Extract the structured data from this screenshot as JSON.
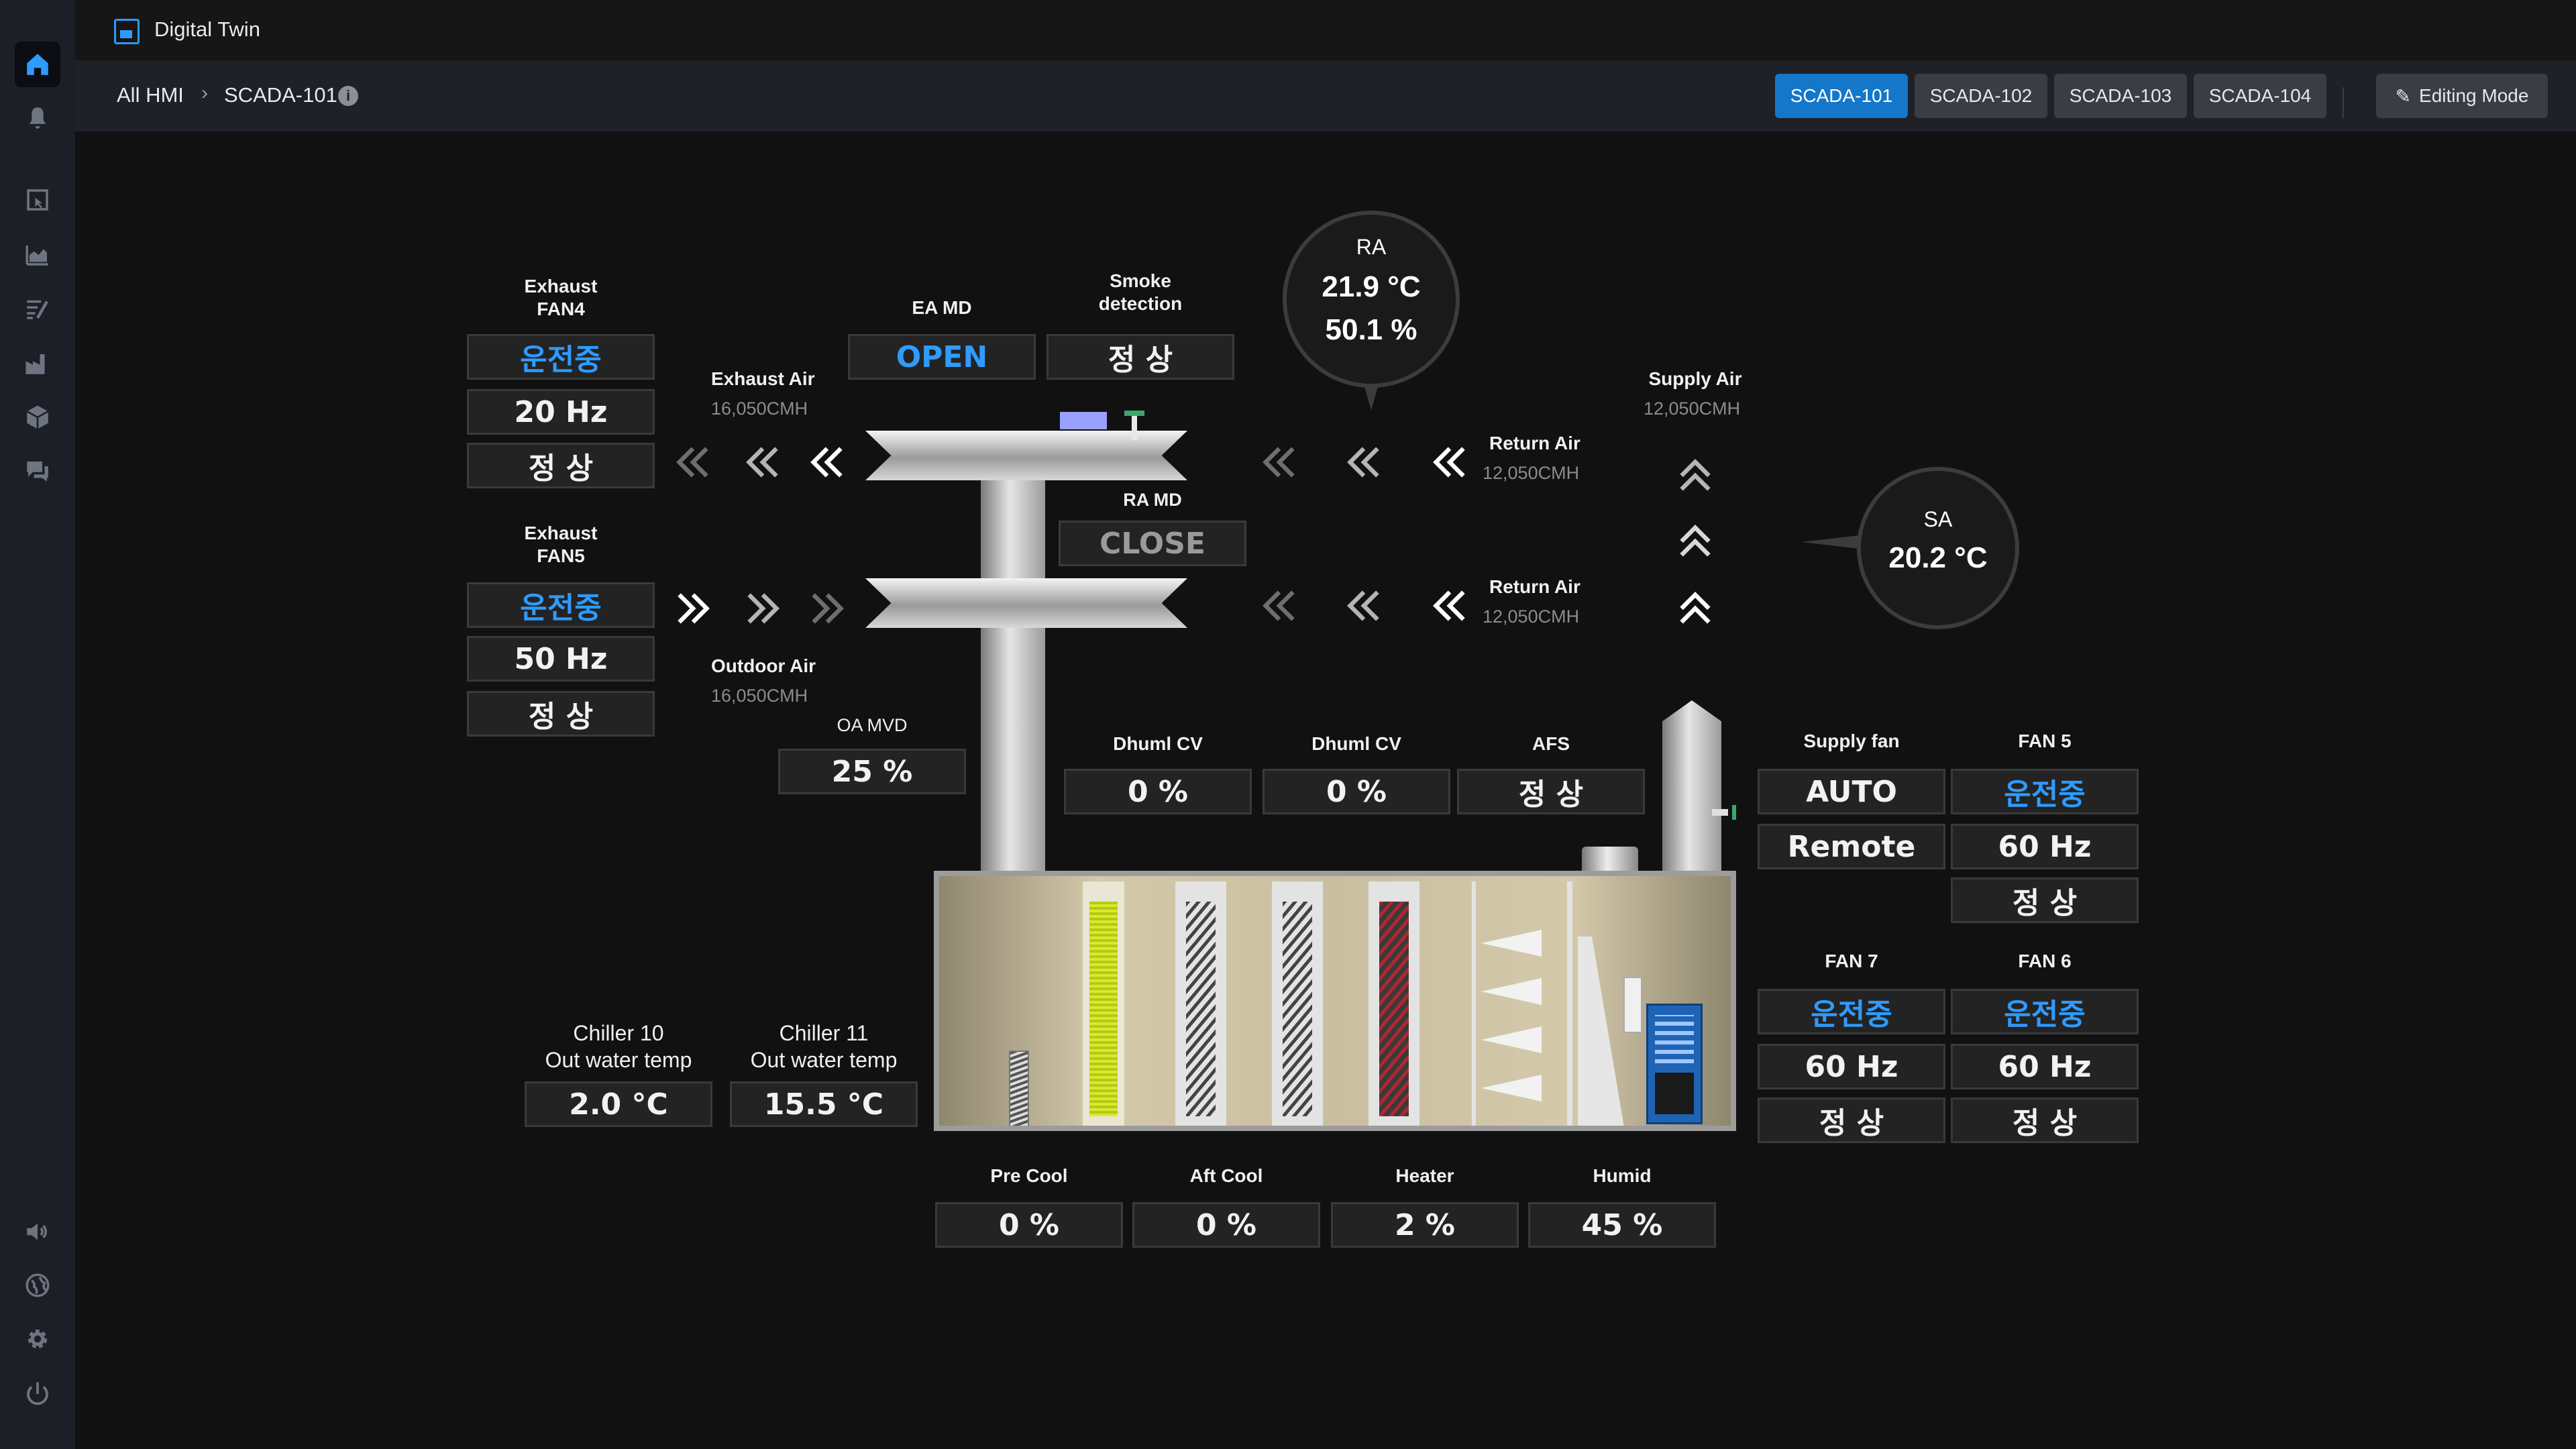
{
  "app": {
    "title": "Digital Twin"
  },
  "breadcrumb": {
    "root": "All HMI",
    "current": "SCADA-101"
  },
  "tabs": [
    {
      "label": "SCADA-101",
      "active": true
    },
    {
      "label": "SCADA-102",
      "active": false
    },
    {
      "label": "SCADA-103",
      "active": false
    },
    {
      "label": "SCADA-104",
      "active": false
    }
  ],
  "editing_mode": {
    "label": "Editing Mode"
  },
  "sidebar": {
    "top_items": [
      "home-icon",
      "bell-icon",
      "touch-panel-icon",
      "area-chart-icon",
      "report-icon",
      "factory-icon",
      "cube-icon",
      "chat-icon"
    ],
    "bottom_items": [
      "speaker-icon",
      "globe-icon",
      "gear-icon",
      "power-icon"
    ]
  },
  "colors": {
    "accent": "#1477c9",
    "running": "#2f9bff",
    "panel": "#232323"
  },
  "exhaust_fan4": {
    "title_1": "Exhaust",
    "title_2": "FAN4",
    "status": "운전중",
    "freq": "20 Hz",
    "state": "정 상"
  },
  "exhaust_fan5": {
    "title_1": "Exhaust",
    "title_2": "FAN5",
    "status": "운전중",
    "freq": "50 Hz",
    "state": "정 상"
  },
  "exhaust_air": {
    "label": "Exhaust Air",
    "flow": "16,050CMH"
  },
  "outdoor_air": {
    "label": "Outdoor Air",
    "flow": "16,050CMH"
  },
  "oa_mvd": {
    "label": "OA MVD",
    "value": "25 %"
  },
  "ea_md": {
    "label": "EA MD",
    "value": "OPEN"
  },
  "smoke": {
    "label_1": "Smoke",
    "label_2": "detection",
    "value": "정 상"
  },
  "ra_md": {
    "label": "RA MD",
    "value": "CLOSE"
  },
  "ra": {
    "label": "RA",
    "temp": "21.9 °C",
    "humidity": "50.1 %"
  },
  "sa": {
    "label": "SA",
    "temp": "20.2 °C"
  },
  "supply_air": {
    "label": "Supply Air",
    "flow": "12,050CMH"
  },
  "return_air_1": {
    "label": "Return Air",
    "flow": "12,050CMH"
  },
  "return_air_2": {
    "label": "Return Air",
    "flow": "12,050CMH"
  },
  "dhuml_cv_1": {
    "label": "Dhuml CV",
    "value": "0 %"
  },
  "dhuml_cv_2": {
    "label": "Dhuml CV",
    "value": "0 %"
  },
  "afs": {
    "label": "AFS",
    "value": "정 상"
  },
  "supply_fan": {
    "label": "Supply fan",
    "mode": "AUTO",
    "control": "Remote"
  },
  "fan5": {
    "label": "FAN 5",
    "status": "운전중",
    "freq": "60 Hz",
    "state": "정 상"
  },
  "fan7": {
    "label": "FAN 7",
    "status": "운전중",
    "freq": "60 Hz",
    "state": "정 상"
  },
  "fan6": {
    "label": "FAN 6",
    "status": "운전중",
    "freq": "60 Hz",
    "state": "정 상"
  },
  "chiller10": {
    "label_1": "Chiller 10",
    "label_2": "Out water temp",
    "value": "2.0 °C"
  },
  "chiller11": {
    "label_1": "Chiller 11",
    "label_2": "Out water temp",
    "value": "15.5 °C"
  },
  "pre_cool": {
    "label": "Pre Cool",
    "value": "0 %"
  },
  "aft_cool": {
    "label": "Aft Cool",
    "value": "0 %"
  },
  "heater": {
    "label": "Heater",
    "value": "2 %"
  },
  "humid": {
    "label": "Humid",
    "value": "45 %"
  }
}
